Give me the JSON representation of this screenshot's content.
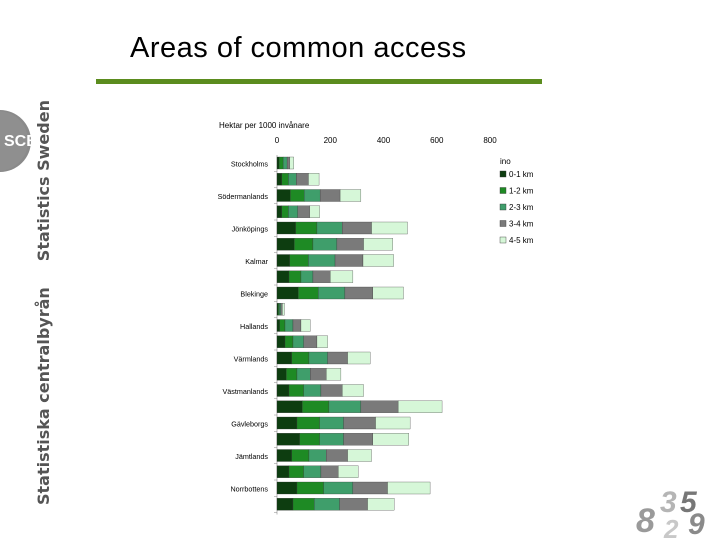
{
  "slide": {
    "title": "Areas of common access",
    "side_text_1": "Statistiska centralbyrån",
    "side_text_2": "Statistics Sweden",
    "logo_text": "SCB",
    "accent_color": "#5b8c1e"
  },
  "chart_data": {
    "type": "bar",
    "orientation": "horizontal",
    "stacked": true,
    "ylabel": "Hektar per 1000 invånare",
    "xlim": [
      0,
      800
    ],
    "xticks": [
      "0",
      "200",
      "400",
      "600",
      "800"
    ],
    "legend_title": "ino",
    "legend_position": "right",
    "categories": [
      "Stockholms",
      "",
      "Södermanlands",
      "",
      "Jönköpings",
      "",
      "Kalmar",
      "",
      "Blekinge",
      "",
      "Hallands",
      "",
      "Värmlands",
      "",
      "Västmanlands",
      "",
      "Gävleborgs",
      "",
      "Jämtlands",
      "",
      "Norrbottens",
      ""
    ],
    "series": [
      {
        "name": "0-1 km",
        "color": "#0d3d10",
        "values": [
          8,
          18,
          50,
          18,
          70,
          65,
          48,
          45,
          80,
          5,
          10,
          30,
          55,
          35,
          45,
          95,
          75,
          85,
          55,
          45,
          75,
          60
        ]
      },
      {
        "name": "1-2 km",
        "color": "#1e8a24",
        "values": [
          15,
          25,
          52,
          25,
          80,
          70,
          70,
          45,
          75,
          4,
          20,
          30,
          65,
          40,
          55,
          100,
          85,
          75,
          65,
          55,
          100,
          80
        ]
      },
      {
        "name": "2-3 km",
        "color": "#3f9e6b",
        "values": [
          15,
          30,
          60,
          35,
          95,
          90,
          100,
          45,
          100,
          5,
          30,
          40,
          70,
          50,
          65,
          120,
          90,
          90,
          65,
          65,
          110,
          95
        ]
      },
      {
        "name": "3-4 km",
        "color": "#7a7a7a",
        "values": [
          10,
          45,
          75,
          45,
          110,
          100,
          105,
          65,
          105,
          6,
          30,
          50,
          75,
          60,
          80,
          140,
          120,
          110,
          80,
          65,
          130,
          105
        ]
      },
      {
        "name": "4-5 km",
        "color": "#d6f7d8",
        "values": [
          15,
          40,
          78,
          37,
          135,
          110,
          115,
          85,
          115,
          8,
          35,
          40,
          85,
          55,
          80,
          165,
          130,
          135,
          90,
          75,
          160,
          100
        ]
      }
    ]
  }
}
